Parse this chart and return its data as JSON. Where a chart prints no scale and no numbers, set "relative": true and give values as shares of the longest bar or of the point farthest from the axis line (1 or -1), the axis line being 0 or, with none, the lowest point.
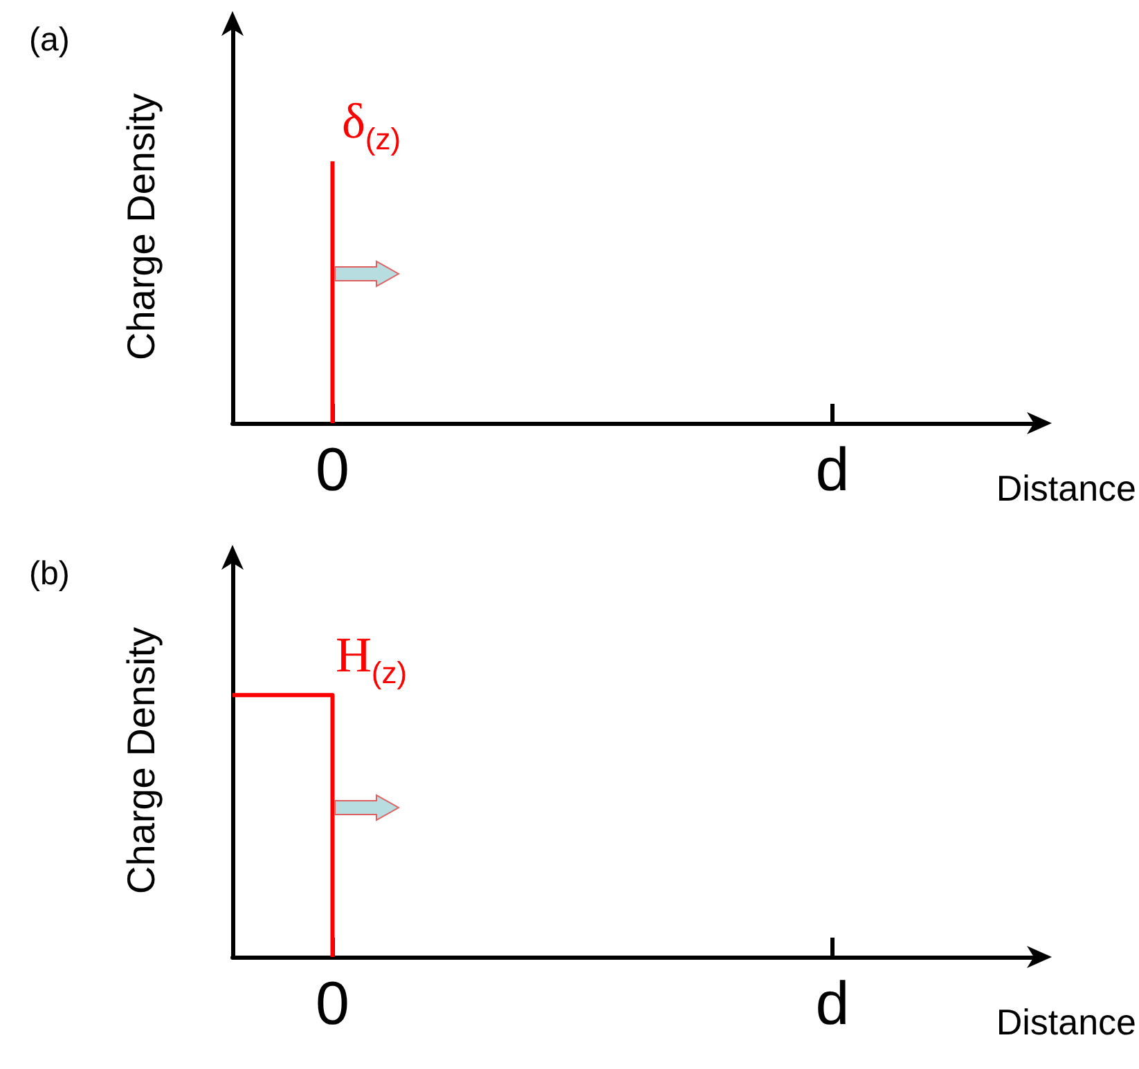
{
  "chart_data": [
    {
      "type": "bar",
      "title": "(a)",
      "xlabel": "Distance",
      "ylabel": "Charge Density",
      "relative": true,
      "categories": [
        null,
        "0",
        null,
        null,
        null,
        null,
        "d",
        null,
        null
      ],
      "series": [
        {
          "color": "#ff0000",
          "values": [
            null,
            1,
            null,
            null,
            null,
            null,
            null,
            null,
            null
          ]
        }
      ],
      "annotations": [
        {
          "text": "δ$_{(z)}$",
          "x": "0",
          "y": 1
        }
      ]
    },
    {
      "type": "step",
      "title": "(b)",
      "xlabel": "Distance",
      "ylabel": "Charge Density",
      "relative": true,
      "categories": [
        null,
        "0",
        null,
        null,
        null,
        null,
        "d",
        null,
        null
      ],
      "marker": "none",
      "series": [
        {
          "color": "#ff0000",
          "values": [
            1,
            0,
            null,
            null,
            null,
            null,
            null,
            null,
            null
          ]
        }
      ],
      "annotations": [
        {
          "text": "H$_{(z)}$",
          "x": "0",
          "y": 1
        }
      ]
    }
  ]
}
